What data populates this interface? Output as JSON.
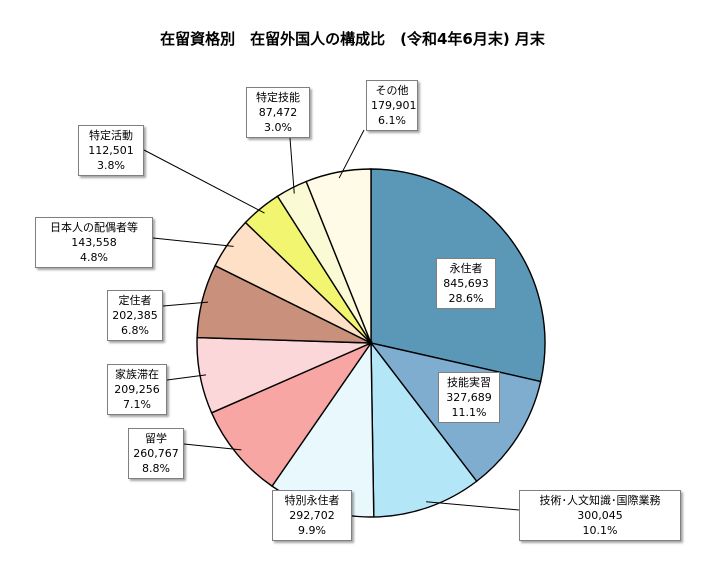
{
  "chart_data": {
    "type": "pie",
    "title": "在留資格別　在留外国人の構成比　(令和4年6月末) 月末",
    "slices": [
      {
        "name": "永住者",
        "value": 845693,
        "percent": "28.6%",
        "value_label": "845,693",
        "color": "#5b97b6"
      },
      {
        "name": "技能実習",
        "value": 327689,
        "percent": "11.1%",
        "value_label": "327,689",
        "color": "#7fadd0"
      },
      {
        "name": "技術･人文知識･国際業務",
        "value": 300045,
        "percent": "10.1%",
        "value_label": "300,045",
        "color": "#b3e6f7"
      },
      {
        "name": "特別永住者",
        "value": 292702,
        "percent": "9.9%",
        "value_label": "292,702",
        "color": "#e9f8fd"
      },
      {
        "name": "留学",
        "value": 260767,
        "percent": "8.8%",
        "value_label": "260,767",
        "color": "#f7a6a3"
      },
      {
        "name": "家族滞在",
        "value": 209256,
        "percent": "7.1%",
        "value_label": "209,256",
        "color": "#fcd7da"
      },
      {
        "name": "定住者",
        "value": 202385,
        "percent": "6.8%",
        "value_label": "202,385",
        "color": "#c9907c"
      },
      {
        "name": "日本人の配偶者等",
        "value": 143558,
        "percent": "4.8%",
        "value_label": "143,558",
        "color": "#fde0c6"
      },
      {
        "name": "特定活動",
        "value": 112501,
        "percent": "3.8%",
        "value_label": "112,501",
        "color": "#f1f56f"
      },
      {
        "name": "特定技能",
        "value": 87472,
        "percent": "3.0%",
        "value_label": "87,472",
        "color": "#fafad4"
      },
      {
        "name": "その他",
        "value": 179901,
        "percent": "6.1%",
        "value_label": "179,901",
        "color": "#fffbe6"
      }
    ]
  }
}
